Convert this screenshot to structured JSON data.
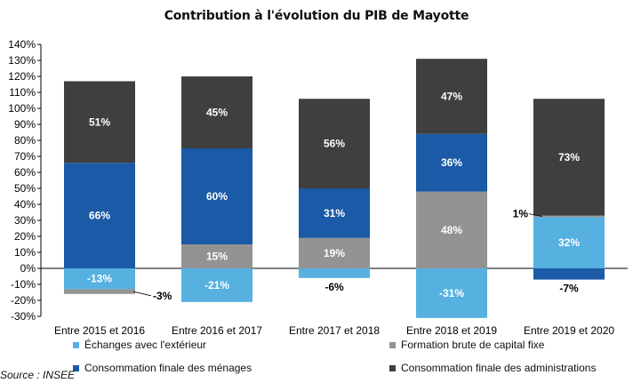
{
  "chart_data": {
    "type": "bar",
    "stacked": true,
    "title": "Contribution à l'évolution du PIB de Mayotte",
    "categories": [
      "Entre 2015 et 2016",
      "Entre 2016 et 2017",
      "Entre 2017 et 2018",
      "Entre 2018 et 2019",
      "Entre 2019 et 2020"
    ],
    "series": [
      {
        "name": "Échanges avec l'extérieur",
        "color": "#56b1e1",
        "values": [
          -13,
          -21,
          -6,
          -31,
          32
        ]
      },
      {
        "name": "Formation brute de capital fixe",
        "color": "#939393",
        "values": [
          -3,
          15,
          19,
          48,
          1
        ]
      },
      {
        "name": "Consommation finale des ménages",
        "color": "#1b5aa6",
        "values": [
          66,
          60,
          31,
          36,
          -7
        ]
      },
      {
        "name": "Consommation finale des administrations",
        "color": "#3f3f3f",
        "values": [
          51,
          45,
          56,
          47,
          73
        ]
      }
    ],
    "data_labels": [
      [
        "-13%",
        "-21%",
        "-6%",
        "-31%",
        "32%"
      ],
      [
        "-3%",
        "15%",
        "19%",
        "48%",
        "1%"
      ],
      [
        "66%",
        "60%",
        "31%",
        "36%",
        "-7%"
      ],
      [
        "51%",
        "45%",
        "56%",
        "47%",
        "73%"
      ]
    ],
    "ylim": [
      -30,
      140
    ],
    "ytick_step": 10,
    "ytick_labels": [
      "-30%",
      "-20%",
      "-10%",
      "0%",
      "10%",
      "20%",
      "30%",
      "40%",
      "50%",
      "60%",
      "70%",
      "80%",
      "90%",
      "100%",
      "110%",
      "120%",
      "130%",
      "140%"
    ],
    "grid": false,
    "legend_position": "bottom"
  },
  "source": "Source : INSEE"
}
